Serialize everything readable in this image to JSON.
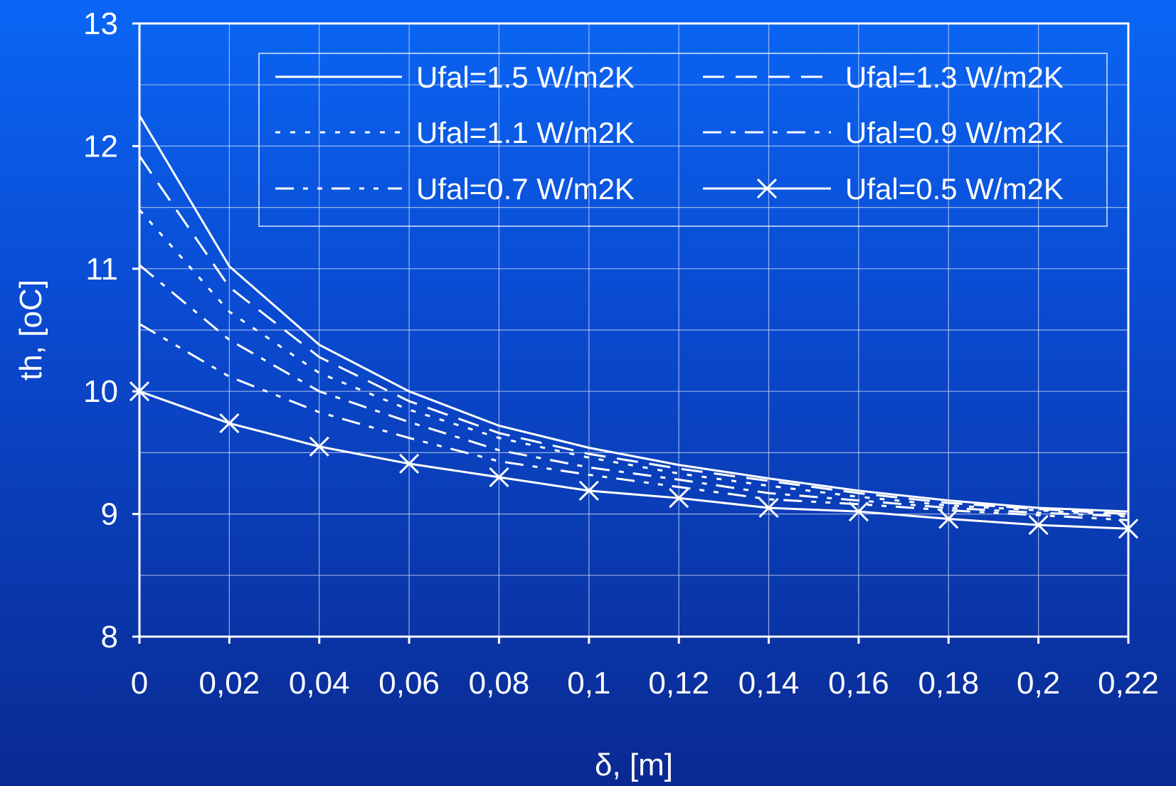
{
  "chart_data": {
    "type": "line",
    "xlabel": "δ, [m]",
    "ylabel": "th, [oC]",
    "xlim": [
      0,
      0.22
    ],
    "ylim": [
      8,
      13
    ],
    "xticks": [
      0,
      0.02,
      0.04,
      0.06,
      0.08,
      0.1,
      0.12,
      0.14,
      0.16,
      0.18,
      0.2,
      0.22
    ],
    "xtick_labels": [
      "0",
      "0,02",
      "0,04",
      "0,06",
      "0,08",
      "0,1",
      "0,12",
      "0,14",
      "0,16",
      "0,18",
      "0,2",
      "0,22"
    ],
    "yticks": [
      8,
      9,
      10,
      11,
      12,
      13
    ],
    "ytick_labels": [
      "8",
      "9",
      "10",
      "11",
      "12",
      "13"
    ],
    "grid": true,
    "legend_position": "top-right",
    "x": [
      0,
      0.02,
      0.04,
      0.06,
      0.08,
      0.1,
      0.12,
      0.14,
      0.16,
      0.18,
      0.2,
      0.22
    ],
    "series": [
      {
        "name": "Ufal=1.5 W/m2K",
        "style": "solid",
        "values": [
          12.25,
          11.02,
          10.38,
          10.0,
          9.72,
          9.54,
          9.4,
          9.29,
          9.19,
          9.11,
          9.05,
          9.02
        ]
      },
      {
        "name": "Ufal=1.3 W/m2K",
        "style": "dash",
        "values": [
          11.92,
          10.85,
          10.28,
          9.92,
          9.66,
          9.49,
          9.37,
          9.27,
          9.17,
          9.09,
          9.04,
          9.0
        ]
      },
      {
        "name": "Ufal=1.1 W/m2K",
        "style": "dot",
        "values": [
          11.48,
          10.65,
          10.15,
          9.85,
          9.62,
          9.46,
          9.33,
          9.23,
          9.14,
          9.07,
          9.03,
          8.99
        ]
      },
      {
        "name": "Ufal=0.9 W/m2K",
        "style": "dashdot",
        "values": [
          11.03,
          10.42,
          10.0,
          9.75,
          9.52,
          9.38,
          9.28,
          9.17,
          9.11,
          9.05,
          9.01,
          8.98
        ]
      },
      {
        "name": "Ufal=0.7 W/m2K",
        "style": "dashdotdot",
        "values": [
          10.55,
          10.12,
          9.83,
          9.62,
          9.43,
          9.32,
          9.22,
          9.12,
          9.08,
          9.03,
          8.99,
          8.95
        ]
      },
      {
        "name": "Ufal=0.5 W/m2K",
        "style": "solid-x",
        "values": [
          10.0,
          9.74,
          9.55,
          9.41,
          9.3,
          9.19,
          9.13,
          9.05,
          9.02,
          8.96,
          8.91,
          8.88
        ]
      }
    ]
  }
}
